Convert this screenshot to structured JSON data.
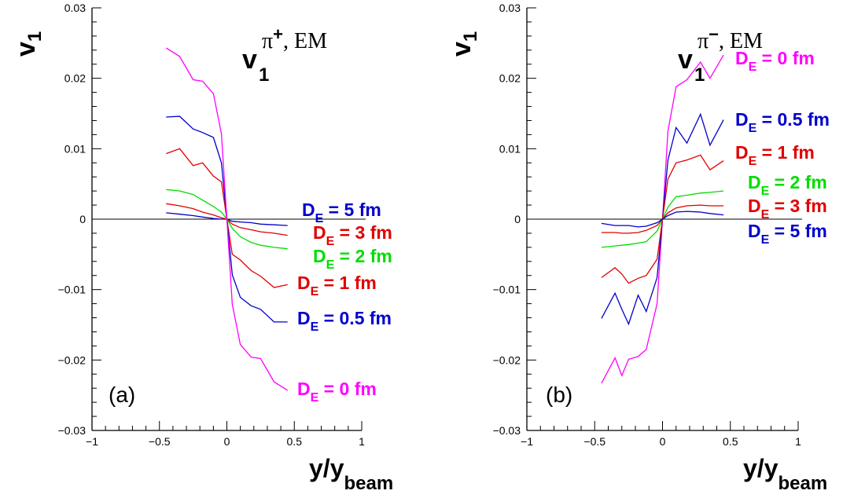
{
  "chart_data": [
    {
      "type": "line",
      "panel_label": "(a)",
      "plot_label": {
        "main": "v",
        "main_sub": "1",
        "sup": "π",
        "sup_extra": "+",
        "suffix": ", EM"
      },
      "ylabel": {
        "main": "v",
        "sub": "1"
      },
      "xlabel": {
        "main": "y/y",
        "sub": "beam"
      },
      "xlim": [
        -1,
        1
      ],
      "ylim": [
        -0.03,
        0.03
      ],
      "xticks": [
        "−1",
        "−0.5",
        "0",
        "0.5",
        "1"
      ],
      "yticks": [
        "0.03",
        "0.02",
        "0.01",
        "0",
        "−0.01",
        "−0.02",
        "−0.03"
      ],
      "x": [
        -0.45,
        -0.35,
        -0.25,
        -0.18,
        -0.1,
        -0.04,
        0,
        0.04,
        0.1,
        0.18,
        0.25,
        0.35,
        0.45
      ],
      "series": [
        {
          "name": "D_E = 5 fm",
          "label_main": "D",
          "label_sub": "E",
          "label_rest": " = 5 fm",
          "color": "#0000cc",
          "values": [
            0.0009,
            0.0007,
            0.0005,
            0.0003,
            0.0001,
            0.0,
            0.0,
            -0.0003,
            -0.0004,
            -0.0005,
            -0.0007,
            -0.0008,
            -0.0009
          ]
        },
        {
          "name": "D_E = 3 fm",
          "label_main": "D",
          "label_sub": "E",
          "label_rest": " = 3 fm",
          "color": "#e00000",
          "values": [
            0.0022,
            0.0019,
            0.0015,
            0.001,
            0.0006,
            0.0002,
            0.0,
            -0.0007,
            -0.0012,
            -0.0015,
            -0.0018,
            -0.002,
            -0.0023
          ]
        },
        {
          "name": "D_E = 2 fm",
          "label_main": "D",
          "label_sub": "E",
          "label_rest": " = 2 fm",
          "color": "#00dd00",
          "values": [
            0.0042,
            0.004,
            0.0035,
            0.0027,
            0.0018,
            0.001,
            0.0,
            -0.0013,
            -0.0025,
            -0.0033,
            -0.0037,
            -0.004,
            -0.0042
          ]
        },
        {
          "name": "D_E = 1 fm",
          "label_main": "D",
          "label_sub": "E",
          "label_rest": " = 1 fm",
          "color": "#e00000",
          "values": [
            0.0093,
            0.01,
            0.0076,
            0.008,
            0.0061,
            0.0053,
            0.0,
            -0.005,
            -0.0058,
            -0.0073,
            -0.0081,
            -0.0097,
            -0.0093
          ]
        },
        {
          "name": "D_E = 0.5 fm",
          "label_main": "D",
          "label_sub": "E",
          "label_rest": " = 0.5 fm",
          "color": "#0000cc",
          "values": [
            0.0145,
            0.0146,
            0.0128,
            0.0123,
            0.0116,
            0.008,
            0.0,
            -0.0079,
            -0.0111,
            -0.0123,
            -0.0128,
            -0.0146,
            -0.0146
          ]
        },
        {
          "name": "D_E = 0 fm",
          "label_main": "D",
          "label_sub": "E",
          "label_rest": " = 0 fm",
          "color": "#ff00ff",
          "values": [
            0.0243,
            0.0231,
            0.0198,
            0.0196,
            0.0178,
            0.0121,
            0.0,
            -0.0121,
            -0.0178,
            -0.0196,
            -0.0198,
            -0.0231,
            -0.0243
          ]
        }
      ]
    },
    {
      "type": "line",
      "panel_label": "(b)",
      "plot_label": {
        "main": "v",
        "main_sub": "1",
        "sup": "π",
        "sup_extra": "−",
        "suffix": ", EM"
      },
      "ylabel": {
        "main": "v",
        "sub": "1"
      },
      "xlabel": {
        "main": "y/y",
        "sub": "beam"
      },
      "xlim": [
        -1,
        1
      ],
      "ylim": [
        -0.03,
        0.03
      ],
      "xticks": [
        "−1",
        "−0.5",
        "0",
        "0.5",
        "1"
      ],
      "yticks": [
        "0.03",
        "0.02",
        "0.01",
        "0",
        "−0.01",
        "−0.02",
        "−0.03"
      ],
      "x": [
        -0.45,
        -0.35,
        -0.3,
        -0.25,
        -0.18,
        -0.12,
        -0.04,
        0,
        0.04,
        0.1,
        0.18,
        0.28,
        0.35,
        0.45
      ],
      "series": [
        {
          "name": "D_E = 0 fm",
          "label_main": "D",
          "label_sub": "E",
          "label_rest": " = 0 fm",
          "color": "#ff00ff",
          "values": [
            -0.0233,
            -0.0197,
            -0.0222,
            -0.0199,
            -0.0195,
            -0.0185,
            -0.012,
            0.0,
            0.0125,
            0.0188,
            0.0198,
            0.0223,
            0.02,
            0.0233
          ]
        },
        {
          "name": "D_E = 0.5 fm",
          "label_main": "D",
          "label_sub": "E",
          "label_rest": " = 0.5 fm",
          "color": "#0000cc",
          "values": [
            -0.0141,
            -0.0105,
            -0.0128,
            -0.0149,
            -0.0108,
            -0.0131,
            -0.0083,
            0.0,
            0.0084,
            0.013,
            0.0108,
            0.0149,
            0.0105,
            0.0141
          ]
        },
        {
          "name": "D_E = 1 fm",
          "label_main": "D",
          "label_sub": "E",
          "label_rest": " = 1 fm",
          "color": "#e00000",
          "values": [
            -0.0083,
            -0.0069,
            -0.0078,
            -0.0091,
            -0.0084,
            -0.008,
            -0.0057,
            0.0,
            0.0057,
            0.008,
            0.0084,
            0.0091,
            0.007,
            0.0083
          ]
        },
        {
          "name": "D_E = 2 fm",
          "label_main": "D",
          "label_sub": "E",
          "label_rest": " = 2 fm",
          "color": "#00dd00",
          "values": [
            -0.004,
            -0.0038,
            -0.0037,
            -0.0036,
            -0.0034,
            -0.0032,
            -0.0017,
            0.0,
            0.0017,
            0.0032,
            0.0034,
            0.0037,
            0.0038,
            0.004
          ]
        },
        {
          "name": "D_E = 3 fm",
          "label_main": "D",
          "label_sub": "E",
          "label_rest": " = 3 fm",
          "color": "#e00000",
          "values": [
            -0.0019,
            -0.0019,
            -0.002,
            -0.002,
            -0.0019,
            -0.0016,
            -0.0009,
            0.0,
            0.0009,
            0.0016,
            0.0019,
            0.002,
            0.0019,
            0.0019
          ]
        },
        {
          "name": "D_E = 5 fm",
          "label_main": "D",
          "label_sub": "E",
          "label_rest": " = 5 fm",
          "color": "#0000cc",
          "values": [
            -0.0006,
            -0.0009,
            -0.0009,
            -0.0009,
            -0.0011,
            -0.001,
            -0.0005,
            0.0,
            0.0005,
            0.001,
            0.0011,
            0.001,
            0.0008,
            0.0006
          ]
        }
      ]
    }
  ]
}
